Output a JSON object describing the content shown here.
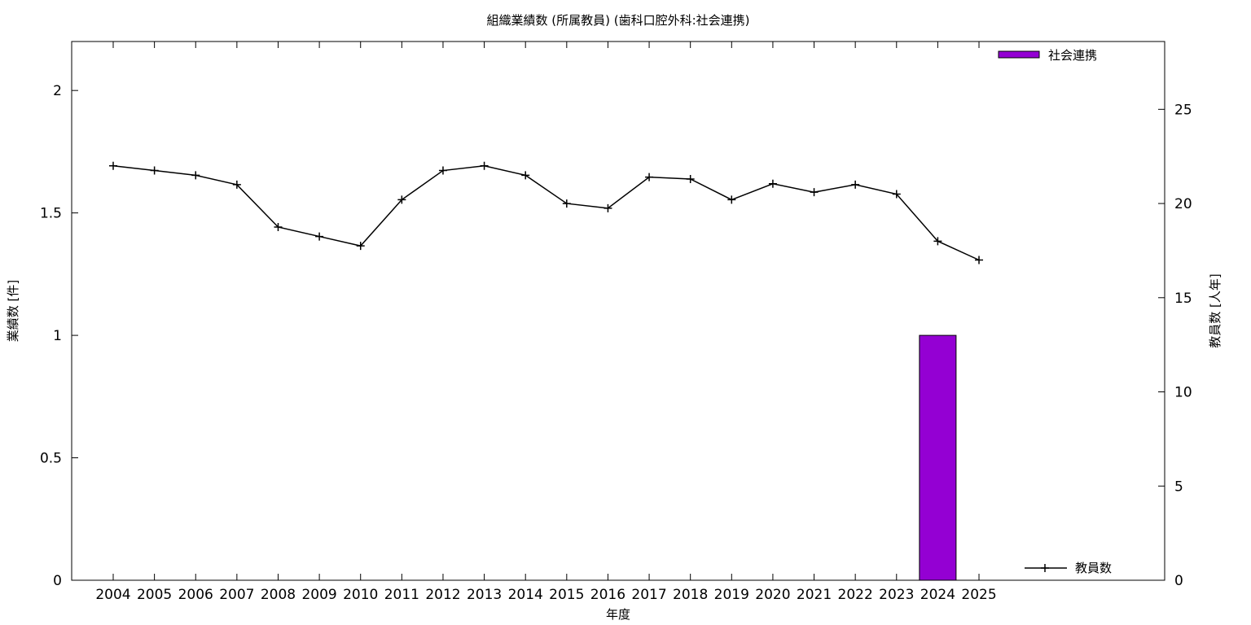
{
  "chart_data": {
    "type": "bar",
    "title": "組織業績数 (所属教員) (歯科口腔外科:社会連携)",
    "xlabel": "年度",
    "ylabel_left": "業績数 [件]",
    "ylabel_right": "教員数 [人年]",
    "categories": [
      "2004",
      "2005",
      "2006",
      "2007",
      "2008",
      "2009",
      "2010",
      "2011",
      "2012",
      "2013",
      "2014",
      "2015",
      "2016",
      "2017",
      "2018",
      "2019",
      "2020",
      "2021",
      "2022",
      "2023",
      "2024",
      "2025"
    ],
    "y_left_ticks": [
      "0",
      "0.5",
      "1",
      "1.5",
      "2"
    ],
    "y_left_range": [
      0,
      2.2
    ],
    "y_right_ticks": [
      "0",
      "5",
      "10",
      "15",
      "20",
      "25"
    ],
    "y_right_range": [
      0,
      28.6
    ],
    "grid": false,
    "series": [
      {
        "name": "社会連携",
        "kind": "bar",
        "axis": "left",
        "color": "#9400D3",
        "values": [
          0,
          0,
          0,
          0,
          0,
          0,
          0,
          0,
          0,
          0,
          0,
          0,
          0,
          0,
          0,
          0,
          0,
          0,
          0,
          0,
          1,
          0
        ]
      },
      {
        "name": "教員数",
        "kind": "line",
        "axis": "right",
        "color": "#000000",
        "values": [
          22.0,
          21.75,
          21.5,
          21.0,
          18.75,
          18.25,
          17.75,
          20.2,
          21.75,
          22.0,
          21.5,
          20.0,
          19.75,
          21.4,
          21.3,
          20.2,
          21.05,
          20.6,
          21.0,
          20.5,
          18.0,
          17.0
        ]
      }
    ],
    "legend": {
      "bar_position": "top-right",
      "line_position": "bottom-right"
    }
  }
}
